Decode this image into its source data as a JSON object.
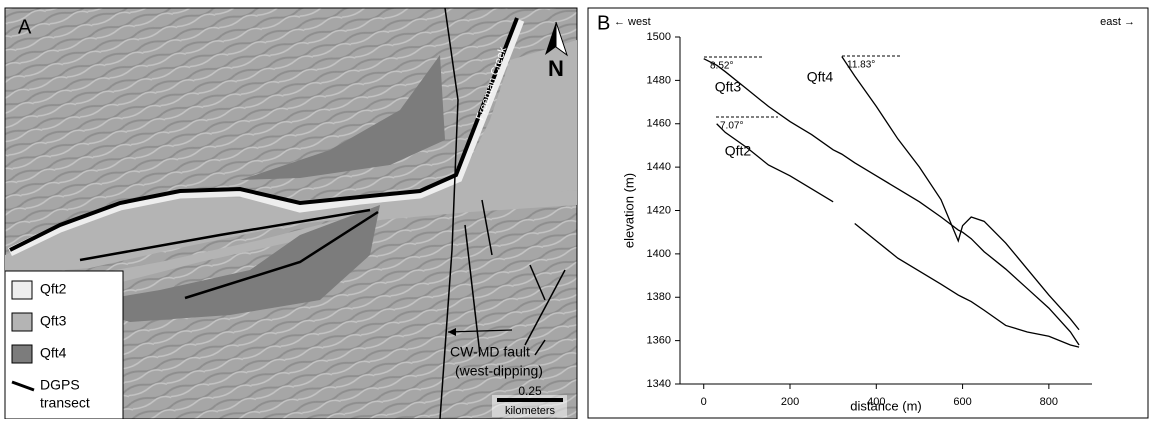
{
  "panel_a": {
    "label": "A",
    "north": "N",
    "creek": "Freeman Creek",
    "fault": [
      "CW-MD fault",
      "(west-dipping)"
    ],
    "scale": {
      "value": "0.25",
      "unit": "kilometers"
    },
    "legend": [
      {
        "name": "Qft2",
        "color": "#eeeeee"
      },
      {
        "name": "Qft3",
        "color": "#b4b4b4"
      },
      {
        "name": "Qft4",
        "color": "#7c7c7c"
      },
      {
        "name": "DGPS",
        "sub": "transect",
        "color": "#000000"
      }
    ]
  },
  "chart_data": {
    "type": "line",
    "panel_label": "B",
    "x_label": "distance (m)",
    "y_label": "elevation (m)",
    "annotations": [
      "← west",
      "east →",
      "8.52°",
      "11.83°",
      "7.07°"
    ],
    "x": [
      0,
      30,
      50,
      100,
      150,
      200,
      250,
      300,
      320,
      350,
      400,
      450,
      500,
      550,
      590,
      600,
      620,
      650,
      700,
      750,
      800,
      850,
      870
    ],
    "series": [
      {
        "name": "Qft3",
        "color": "#000000",
        "values": [
          1490,
          1487,
          1484,
          1476,
          1468,
          1461,
          1455,
          1448,
          1446,
          1442,
          1436,
          1430,
          1424,
          1417,
          1411,
          1410,
          1407,
          1401,
          1393,
          1384,
          1375,
          1364,
          1358
        ]
      },
      {
        "name": "Qft4",
        "color": "#000000",
        "values": [
          null,
          null,
          null,
          null,
          null,
          null,
          null,
          null,
          1491,
          1482,
          1468,
          1453,
          1440,
          1425,
          1406,
          1413,
          1417,
          1415,
          1405,
          1393,
          1381,
          1370,
          1365
        ]
      },
      {
        "name": "Qft2",
        "color": "#000000",
        "values": [
          null,
          1460,
          1456,
          1449,
          1441,
          1436,
          1430,
          1424,
          null,
          1414,
          1406,
          1398,
          1392,
          1386,
          1381,
          1380,
          1378,
          1374,
          1367,
          1364,
          1362,
          1358,
          1357
        ]
      }
    ],
    "xlim": [
      -55,
      900
    ],
    "ylim": [
      1340,
      1500
    ],
    "xticks": [
      0,
      200,
      400,
      600,
      800
    ],
    "yticks": [
      1340,
      1360,
      1380,
      1400,
      1420,
      1440,
      1460,
      1480,
      1500
    ]
  }
}
